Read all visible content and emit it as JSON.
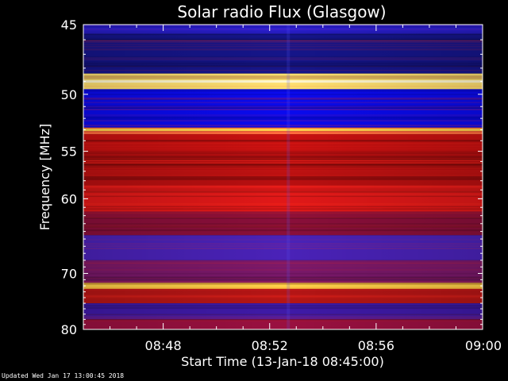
{
  "chart_data": {
    "type": "heatmap",
    "title": "Solar radio Flux (Glasgow)",
    "xlabel": "Start Time (13-Jan-18 08:45:00)",
    "ylabel": "Frequency [MHz]",
    "x_tick_labels": [
      "08:48",
      "08:52",
      "08:56",
      "09:00"
    ],
    "x_ticks_minutes": [
      3,
      7,
      11,
      15
    ],
    "xlim_minutes": [
      0,
      15
    ],
    "y_tick_labels": [
      "45",
      "50",
      "55",
      "60",
      "70",
      "80"
    ],
    "y_ticks_mhz": [
      45,
      50,
      55,
      60,
      70,
      80
    ],
    "y_scale": "reciprocal",
    "ylim_mhz": [
      45,
      80
    ],
    "bands": [
      {
        "from_mhz": 45.0,
        "to_mhz": 45.6,
        "color": "#2a1fd6"
      },
      {
        "from_mhz": 45.6,
        "to_mhz": 48.4,
        "color": "#15158a"
      },
      {
        "from_mhz": 48.4,
        "to_mhz": 49.6,
        "color": "#ffe070"
      },
      {
        "from_mhz": 49.6,
        "to_mhz": 52.8,
        "color": "#0a0aee"
      },
      {
        "from_mhz": 52.8,
        "to_mhz": 53.4,
        "color": "#ff7040"
      },
      {
        "from_mhz": 53.4,
        "to_mhz": 55.0,
        "color": "#c81010"
      },
      {
        "from_mhz": 55.0,
        "to_mhz": 58.5,
        "color": "#b80f10"
      },
      {
        "from_mhz": 58.5,
        "to_mhz": 61.5,
        "color": "#e11818"
      },
      {
        "from_mhz": 61.5,
        "to_mhz": 64.5,
        "color": "#8a0f3a"
      },
      {
        "from_mhz": 64.5,
        "to_mhz": 68.0,
        "color": "#4a22b8"
      },
      {
        "from_mhz": 68.0,
        "to_mhz": 71.5,
        "color": "#7a186a"
      },
      {
        "from_mhz": 71.5,
        "to_mhz": 72.5,
        "color": "#ffc040"
      },
      {
        "from_mhz": 72.5,
        "to_mhz": 75.0,
        "color": "#b51515"
      },
      {
        "from_mhz": 75.0,
        "to_mhz": 78.0,
        "color": "#3f1aa8"
      },
      {
        "from_mhz": 78.0,
        "to_mhz": 80.0,
        "color": "#9a1040"
      }
    ],
    "bright_lines_mhz": [
      49.0,
      53.0,
      72.0
    ],
    "grid": false
  },
  "footer": "Updated Wed Jan 17 13:00:45 2018"
}
